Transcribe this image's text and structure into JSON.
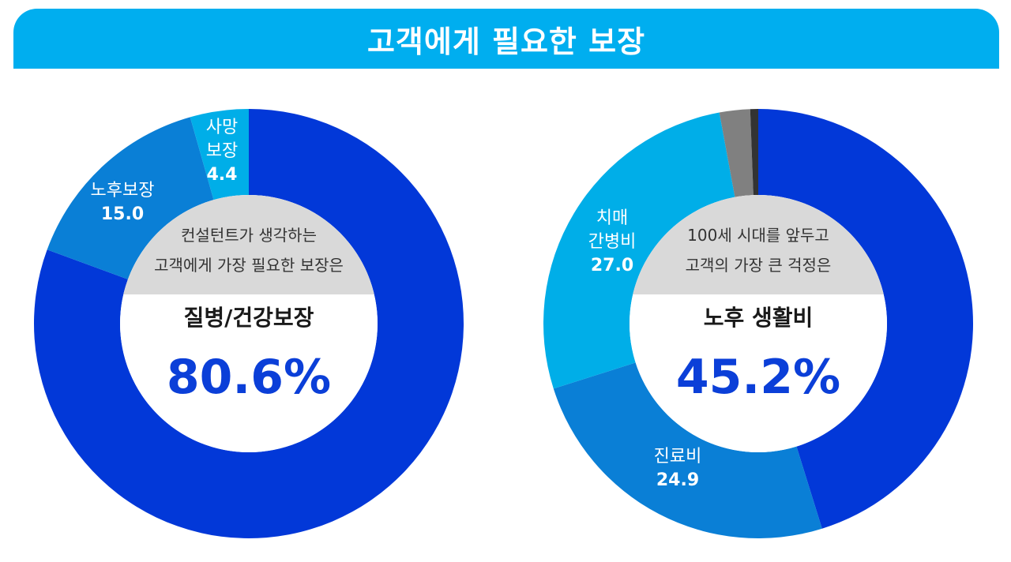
{
  "title": "고객에게 필요한 보장",
  "colors": {
    "banner": "#00aeef",
    "dark_blue": "#0238d8",
    "mid_blue": "#0a7fd6",
    "light_blue": "#00aee8",
    "gray": "#808080",
    "dark_gray": "#333333",
    "center_band": "#d9d9d9",
    "accent_text": "#0b3fd8"
  },
  "chart_data": [
    {
      "type": "pie",
      "donut": true,
      "slices": [
        {
          "name": "질병/건강보장",
          "value": 80.6,
          "color": "#0238d8",
          "label_name": "",
          "label_value": ""
        },
        {
          "name": "노후보장",
          "value": 15.0,
          "color": "#0a7fd6",
          "label_name": "노후보장",
          "label_value": "15.0"
        },
        {
          "name": "사망보장",
          "value": 4.4,
          "color": "#00aee8",
          "label_name": "사망\n보장",
          "label_value": "4.4"
        }
      ],
      "center": {
        "question_line1": "컨설턴트가 생각하는",
        "question_line2": "고객에게 가장 필요한 보장은",
        "headline": "질병/건강보장",
        "value_text": "80.6%"
      }
    },
    {
      "type": "pie",
      "donut": true,
      "slices": [
        {
          "name": "노후 생활비",
          "value": 45.2,
          "color": "#0238d8",
          "label_name": "",
          "label_value": ""
        },
        {
          "name": "진료비",
          "value": 24.9,
          "color": "#0a7fd6",
          "label_name": "진료비",
          "label_value": "24.9"
        },
        {
          "name": "치매 간병비",
          "value": 27.0,
          "color": "#00aee8",
          "label_name": "치매\n간병비",
          "label_value": "27.0"
        },
        {
          "name": "",
          "value": 2.3,
          "color": "#808080",
          "label_name": "",
          "label_value": ""
        },
        {
          "name": "",
          "value": 0.6,
          "color": "#333333",
          "label_name": "",
          "label_value": ""
        }
      ],
      "center": {
        "question_line1": "100세 시대를 앞두고",
        "question_line2": "고객의 가장 큰 걱정은",
        "headline": "노후 생활비",
        "value_text": "45.2%"
      }
    }
  ]
}
